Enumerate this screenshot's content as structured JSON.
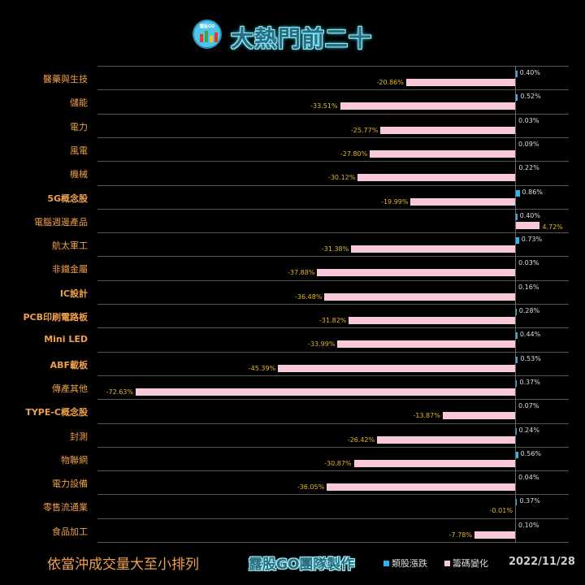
{
  "header": {
    "title": "大熱門前二十",
    "logo_text": "露股GO"
  },
  "footer": {
    "sort_note": "依當沖成交量大至小排列",
    "team": "露股GO團隊製作",
    "legend": [
      {
        "label": "類股漲跌",
        "color": "#29b6f6"
      },
      {
        "label": "籌碼變化",
        "color": "#f8c8d8"
      }
    ],
    "date": "2022/11/28"
  },
  "chart_data": {
    "type": "bar",
    "orientation": "horizontal",
    "title": "大熱門前二十",
    "categories": [
      "醫藥與生技",
      "儲能",
      "電力",
      "風電",
      "機械",
      "5G概念股",
      "電腦週邊產品",
      "航太軍工",
      "非鐵金屬",
      "IC設計",
      "PCB印刷電路板",
      "Mini LED",
      "ABF載板",
      "傳產其他",
      "TYPE-C概念股",
      "封測",
      "物聯網",
      "電力設備",
      "零售流通業",
      "食品加工"
    ],
    "series": [
      {
        "name": "類股漲跌",
        "color": "#29b6f6",
        "values": [
          0.4,
          0.52,
          0.03,
          0.09,
          0.22,
          0.86,
          0.4,
          0.73,
          0.03,
          0.16,
          0.28,
          0.44,
          0.53,
          0.37,
          0.07,
          0.24,
          0.56,
          0.04,
          0.37,
          0.1
        ]
      },
      {
        "name": "籌碼變化",
        "color": "#f8c8d8",
        "values": [
          -20.86,
          -33.51,
          -25.77,
          -27.8,
          -30.12,
          -19.99,
          4.72,
          -31.38,
          -37.88,
          -36.48,
          -31.82,
          -33.99,
          -45.39,
          -72.63,
          -13.87,
          -26.42,
          -30.87,
          -36.05,
          -0.01,
          -7.78
        ]
      }
    ],
    "value_labels": {
      "類股漲跌": [
        "0.40%",
        "0.52%",
        "0.03%",
        "0.09%",
        "0.22%",
        "0.86%",
        "0.40%",
        "0.73%",
        "0.03%",
        "0.16%",
        "0.28%",
        "0.44%",
        "0.53%",
        "0.37%",
        "0.07%",
        "0.24%",
        "0.56%",
        "0.04%",
        "0.37%",
        "0.10%"
      ],
      "籌碼變化": [
        "-20.86%",
        "-33.51%",
        "-25.77%",
        "-27.80%",
        "-30.12%",
        "-19.99%",
        "4.72%",
        "-31.38%",
        "-37.88%",
        "-36.48%",
        "-31.82%",
        "-33.99%",
        "-45.39%",
        "-72.63%",
        "-13.87%",
        "-26.42%",
        "-30.87%",
        "-36.05%",
        "-0.01%",
        "-7.78%"
      ]
    },
    "xlabel": "",
    "ylabel": "",
    "legend_position": "bottom",
    "grid": true,
    "unit": "%"
  }
}
